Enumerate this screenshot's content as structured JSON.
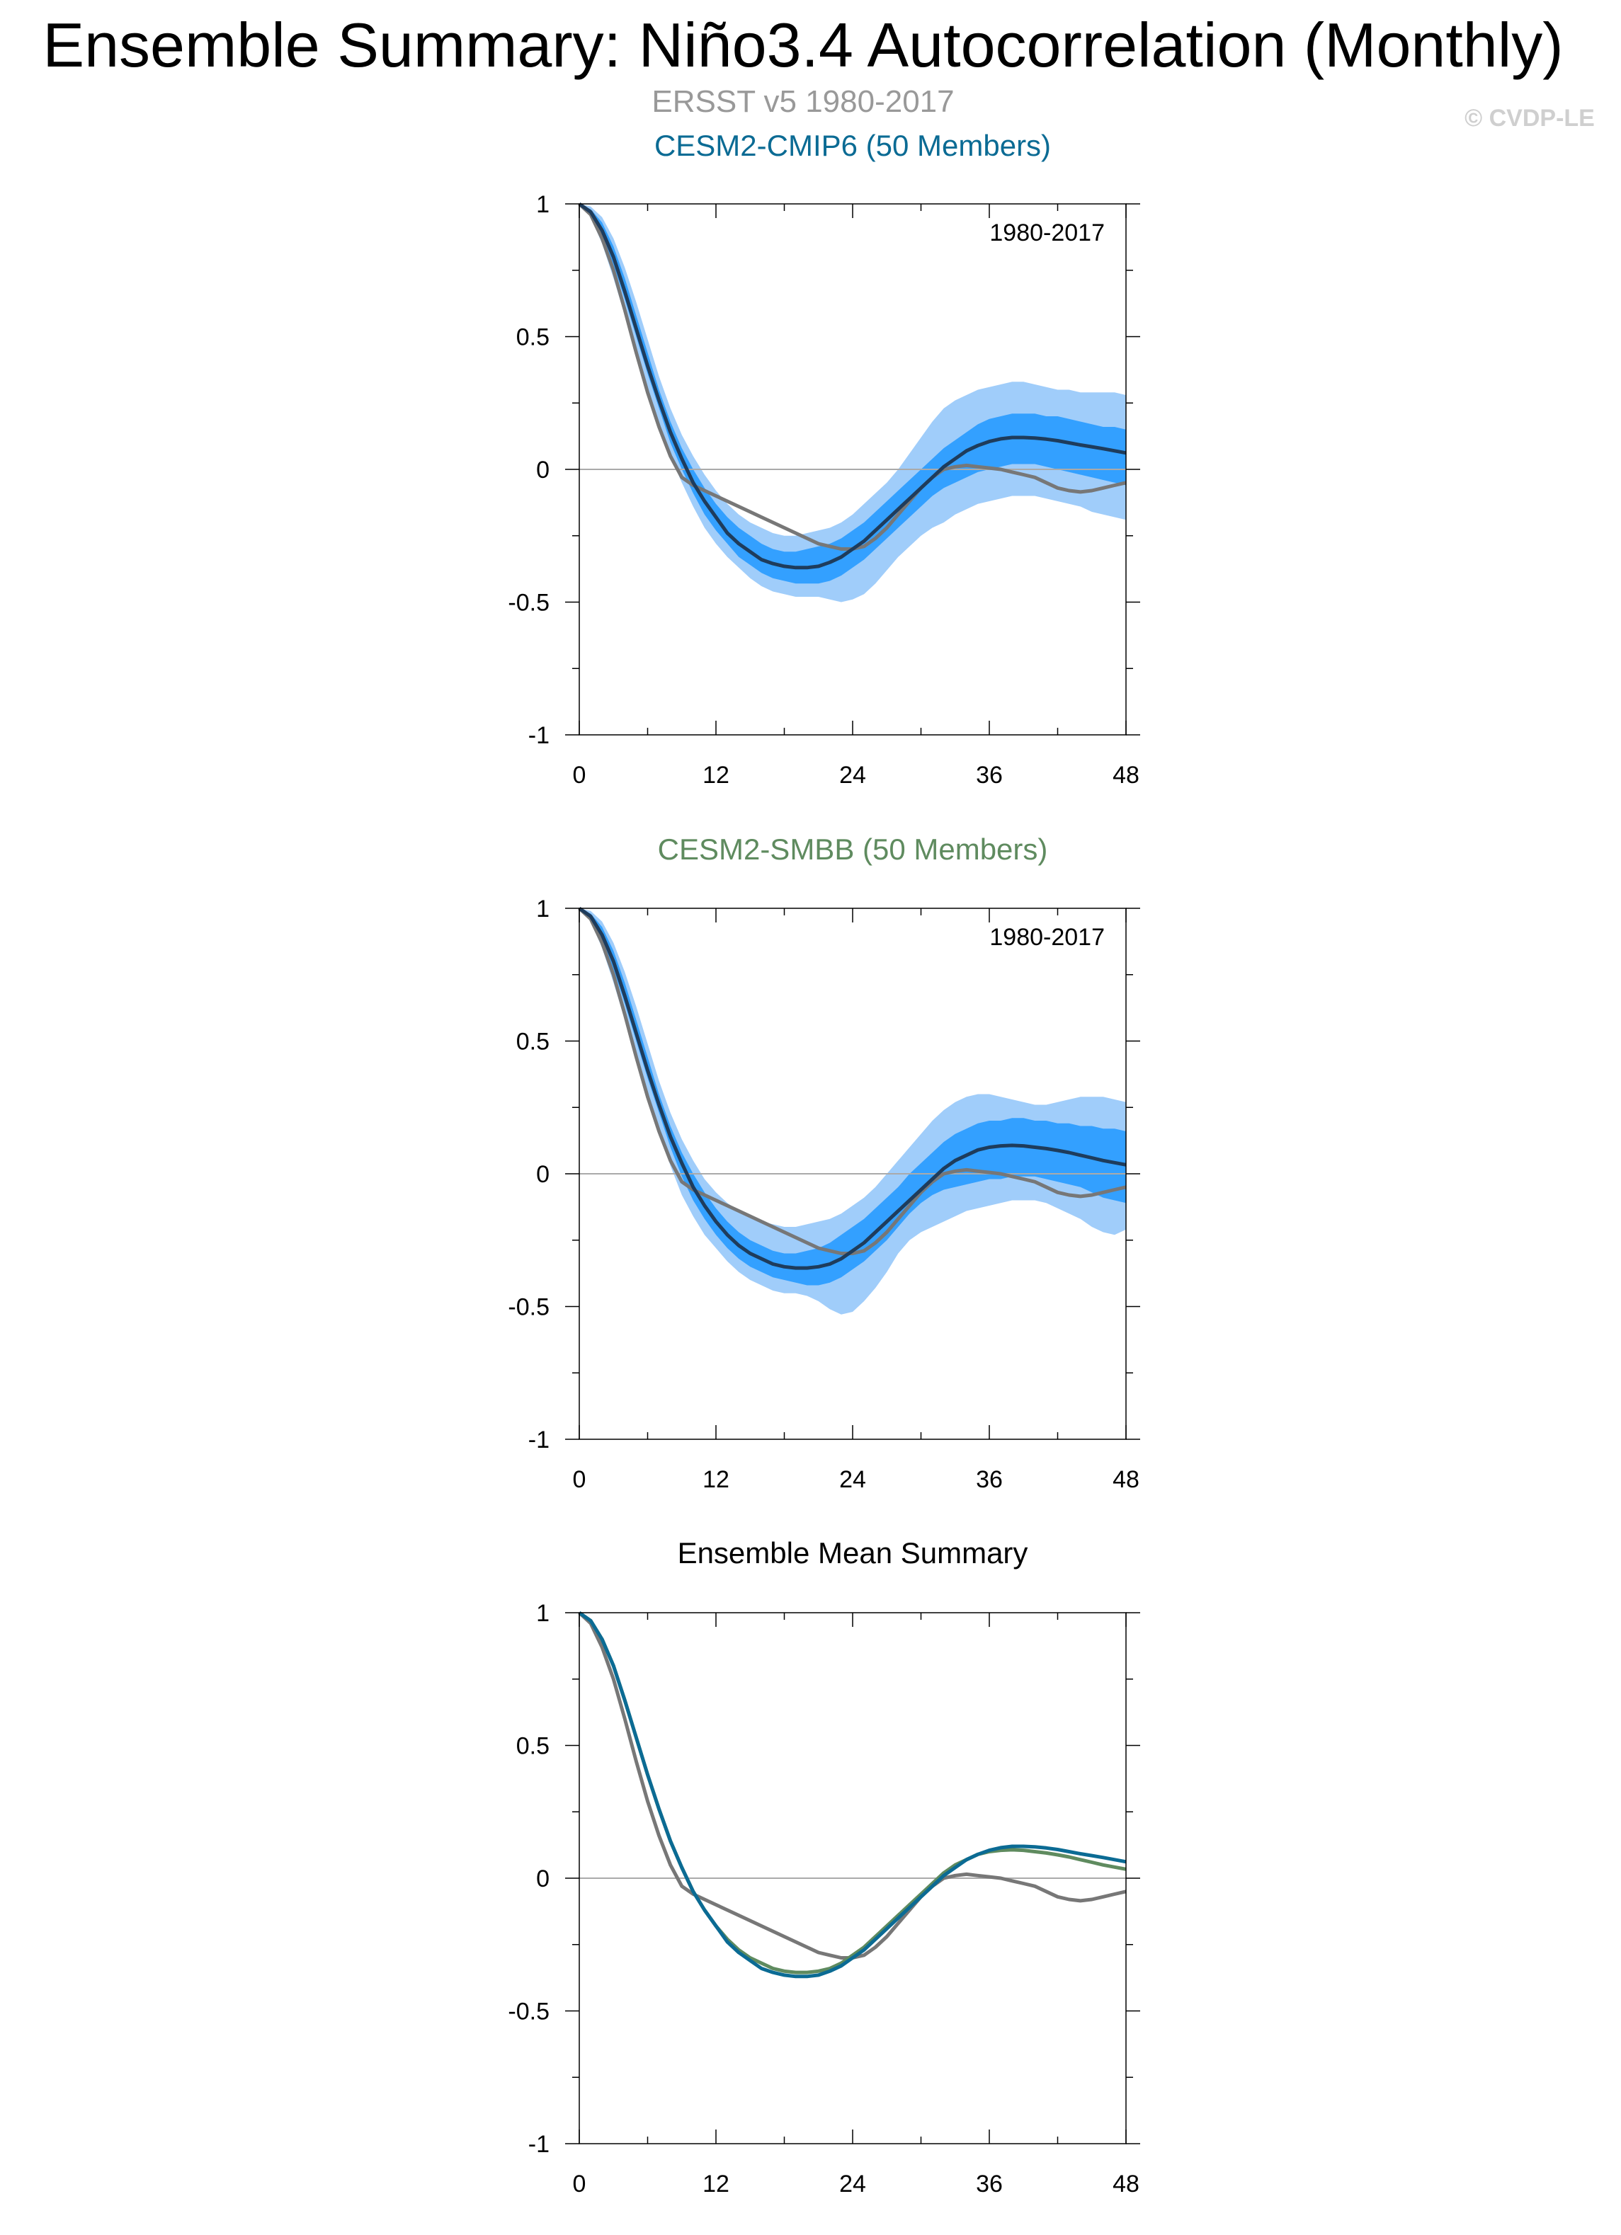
{
  "title": "Ensemble Summary: Niño3.4 Autocorrelation (Monthly)",
  "subtitle_obs": "ERSST v5 1980-2017",
  "copyright": "© CVDP-LE",
  "colors": {
    "obs": "#777777",
    "cesm2_cmip6": "#0b6b94",
    "cesm2_smbb": "#5f8b5f",
    "ens_mean": "#1e3c5c",
    "band_outer": "#a0cdfa",
    "band_inner": "#33a0ff",
    "zero_line": "#aaaaaa"
  },
  "chart_data": [
    {
      "type": "line",
      "panel_title": "CESM2-CMIP6 (50 Members)",
      "period_label": "1980-2017",
      "xlim": [
        0,
        48
      ],
      "ylim": [
        -1,
        1
      ],
      "xticks": [
        "0",
        "12",
        "24",
        "36",
        "48"
      ],
      "yticks": [
        "1",
        "0.5",
        "0",
        "-0.5",
        "-1"
      ],
      "x": [
        0,
        1,
        2,
        3,
        4,
        5,
        6,
        7,
        8,
        9,
        10,
        11,
        12,
        13,
        14,
        15,
        16,
        17,
        18,
        19,
        20,
        21,
        22,
        23,
        24,
        25,
        26,
        27,
        28,
        29,
        30,
        31,
        32,
        33,
        34,
        35,
        36,
        37,
        38,
        39,
        40,
        41,
        42,
        43,
        44,
        45,
        46,
        47,
        48
      ],
      "series": [
        {
          "name": "ensemble mean",
          "role": "mean",
          "values": [
            1.0,
            0.97,
            0.9,
            0.8,
            0.67,
            0.53,
            0.39,
            0.26,
            0.14,
            0.04,
            -0.05,
            -0.12,
            -0.18,
            -0.24,
            -0.28,
            -0.31,
            -0.34,
            -0.355,
            -0.365,
            -0.37,
            -0.37,
            -0.365,
            -0.35,
            -0.33,
            -0.3,
            -0.27,
            -0.23,
            -0.19,
            -0.15,
            -0.11,
            -0.07,
            -0.03,
            0.01,
            0.04,
            0.07,
            0.09,
            0.105,
            0.115,
            0.12,
            0.12,
            0.118,
            0.114,
            0.108,
            0.1,
            0.092,
            0.085,
            0.078,
            0.07,
            0.062
          ]
        },
        {
          "name": "ERSST v5 1980-2017",
          "role": "obs",
          "values": [
            1.0,
            0.96,
            0.87,
            0.75,
            0.6,
            0.44,
            0.29,
            0.16,
            0.05,
            -0.03,
            -0.06,
            -0.08,
            -0.1,
            -0.12,
            -0.14,
            -0.16,
            -0.18,
            -0.2,
            -0.22,
            -0.24,
            -0.26,
            -0.28,
            -0.29,
            -0.3,
            -0.3,
            -0.29,
            -0.26,
            -0.22,
            -0.17,
            -0.12,
            -0.07,
            -0.03,
            0.0,
            0.01,
            0.015,
            0.01,
            0.005,
            0.0,
            -0.01,
            -0.02,
            -0.03,
            -0.05,
            -0.07,
            -0.08,
            -0.085,
            -0.08,
            -0.07,
            -0.06,
            -0.05
          ]
        },
        {
          "name": "outer band low",
          "role": "band_outer_low",
          "values": [
            1.0,
            0.95,
            0.85,
            0.72,
            0.58,
            0.44,
            0.3,
            0.17,
            0.05,
            -0.05,
            -0.14,
            -0.22,
            -0.28,
            -0.33,
            -0.37,
            -0.41,
            -0.44,
            -0.46,
            -0.47,
            -0.48,
            -0.48,
            -0.48,
            -0.49,
            -0.5,
            -0.49,
            -0.47,
            -0.43,
            -0.38,
            -0.33,
            -0.29,
            -0.25,
            -0.22,
            -0.2,
            -0.17,
            -0.15,
            -0.13,
            -0.12,
            -0.11,
            -0.1,
            -0.1,
            -0.1,
            -0.11,
            -0.12,
            -0.13,
            -0.14,
            -0.16,
            -0.17,
            -0.18,
            -0.19
          ]
        },
        {
          "name": "inner band low",
          "role": "band_inner_low",
          "values": [
            1.0,
            0.96,
            0.88,
            0.77,
            0.64,
            0.5,
            0.36,
            0.23,
            0.1,
            0.0,
            -0.09,
            -0.17,
            -0.23,
            -0.28,
            -0.33,
            -0.36,
            -0.39,
            -0.41,
            -0.42,
            -0.43,
            -0.43,
            -0.43,
            -0.42,
            -0.4,
            -0.37,
            -0.34,
            -0.3,
            -0.26,
            -0.22,
            -0.18,
            -0.14,
            -0.1,
            -0.07,
            -0.05,
            -0.03,
            -0.01,
            0.0,
            0.01,
            0.02,
            0.02,
            0.02,
            0.01,
            0.0,
            -0.01,
            -0.02,
            -0.03,
            -0.04,
            -0.05,
            -0.06
          ]
        },
        {
          "name": "inner band high",
          "role": "band_inner_high",
          "values": [
            1.0,
            0.98,
            0.93,
            0.84,
            0.72,
            0.58,
            0.44,
            0.3,
            0.18,
            0.08,
            0.0,
            -0.07,
            -0.13,
            -0.18,
            -0.22,
            -0.25,
            -0.28,
            -0.3,
            -0.31,
            -0.31,
            -0.3,
            -0.29,
            -0.28,
            -0.26,
            -0.23,
            -0.2,
            -0.16,
            -0.12,
            -0.08,
            -0.04,
            0.0,
            0.04,
            0.08,
            0.11,
            0.14,
            0.17,
            0.19,
            0.2,
            0.21,
            0.21,
            0.21,
            0.2,
            0.2,
            0.19,
            0.18,
            0.17,
            0.16,
            0.16,
            0.15
          ]
        },
        {
          "name": "outer band high",
          "role": "band_outer_high",
          "values": [
            1.0,
            0.99,
            0.95,
            0.87,
            0.76,
            0.63,
            0.49,
            0.35,
            0.23,
            0.13,
            0.05,
            -0.02,
            -0.08,
            -0.13,
            -0.17,
            -0.2,
            -0.22,
            -0.24,
            -0.25,
            -0.25,
            -0.24,
            -0.23,
            -0.22,
            -0.2,
            -0.17,
            -0.13,
            -0.09,
            -0.05,
            0.0,
            0.06,
            0.12,
            0.18,
            0.23,
            0.26,
            0.28,
            0.3,
            0.31,
            0.32,
            0.33,
            0.33,
            0.32,
            0.31,
            0.3,
            0.3,
            0.29,
            0.29,
            0.29,
            0.29,
            0.28
          ]
        }
      ]
    },
    {
      "type": "line",
      "panel_title": "CESM2-SMBB (50 Members)",
      "period_label": "1980-2017",
      "xlim": [
        0,
        48
      ],
      "ylim": [
        -1,
        1
      ],
      "xticks": [
        "0",
        "12",
        "24",
        "36",
        "48"
      ],
      "yticks": [
        "1",
        "0.5",
        "0",
        "-0.5",
        "-1"
      ],
      "x": [
        0,
        1,
        2,
        3,
        4,
        5,
        6,
        7,
        8,
        9,
        10,
        11,
        12,
        13,
        14,
        15,
        16,
        17,
        18,
        19,
        20,
        21,
        22,
        23,
        24,
        25,
        26,
        27,
        28,
        29,
        30,
        31,
        32,
        33,
        34,
        35,
        36,
        37,
        38,
        39,
        40,
        41,
        42,
        43,
        44,
        45,
        46,
        47,
        48
      ],
      "series": [
        {
          "name": "ensemble mean",
          "role": "mean",
          "values": [
            1.0,
            0.97,
            0.9,
            0.8,
            0.67,
            0.53,
            0.39,
            0.26,
            0.14,
            0.04,
            -0.05,
            -0.12,
            -0.18,
            -0.23,
            -0.27,
            -0.3,
            -0.32,
            -0.34,
            -0.35,
            -0.355,
            -0.355,
            -0.35,
            -0.34,
            -0.32,
            -0.29,
            -0.26,
            -0.22,
            -0.18,
            -0.14,
            -0.1,
            -0.06,
            -0.02,
            0.02,
            0.05,
            0.07,
            0.09,
            0.1,
            0.105,
            0.107,
            0.105,
            0.1,
            0.095,
            0.088,
            0.08,
            0.07,
            0.06,
            0.05,
            0.042,
            0.034
          ]
        },
        {
          "name": "ERSST v5 1980-2017",
          "role": "obs",
          "values": [
            1.0,
            0.96,
            0.87,
            0.75,
            0.6,
            0.44,
            0.29,
            0.16,
            0.05,
            -0.03,
            -0.06,
            -0.08,
            -0.1,
            -0.12,
            -0.14,
            -0.16,
            -0.18,
            -0.2,
            -0.22,
            -0.24,
            -0.26,
            -0.28,
            -0.29,
            -0.3,
            -0.3,
            -0.29,
            -0.26,
            -0.22,
            -0.17,
            -0.12,
            -0.07,
            -0.03,
            0.0,
            0.01,
            0.015,
            0.01,
            0.005,
            0.0,
            -0.01,
            -0.02,
            -0.03,
            -0.05,
            -0.07,
            -0.08,
            -0.085,
            -0.08,
            -0.07,
            -0.06,
            -0.05
          ]
        },
        {
          "name": "outer band low",
          "role": "band_outer_low",
          "values": [
            1.0,
            0.95,
            0.85,
            0.72,
            0.58,
            0.44,
            0.3,
            0.16,
            0.03,
            -0.08,
            -0.16,
            -0.23,
            -0.28,
            -0.33,
            -0.37,
            -0.4,
            -0.42,
            -0.44,
            -0.45,
            -0.45,
            -0.46,
            -0.48,
            -0.51,
            -0.53,
            -0.52,
            -0.48,
            -0.43,
            -0.37,
            -0.3,
            -0.25,
            -0.22,
            -0.2,
            -0.18,
            -0.16,
            -0.14,
            -0.13,
            -0.12,
            -0.11,
            -0.1,
            -0.1,
            -0.1,
            -0.11,
            -0.13,
            -0.15,
            -0.17,
            -0.2,
            -0.22,
            -0.23,
            -0.21
          ]
        },
        {
          "name": "inner band low",
          "role": "band_inner_low",
          "values": [
            1.0,
            0.96,
            0.88,
            0.77,
            0.64,
            0.5,
            0.36,
            0.23,
            0.1,
            -0.01,
            -0.1,
            -0.17,
            -0.23,
            -0.28,
            -0.32,
            -0.35,
            -0.37,
            -0.39,
            -0.4,
            -0.41,
            -0.42,
            -0.42,
            -0.41,
            -0.39,
            -0.36,
            -0.33,
            -0.29,
            -0.25,
            -0.2,
            -0.15,
            -0.11,
            -0.08,
            -0.06,
            -0.05,
            -0.04,
            -0.03,
            -0.02,
            -0.02,
            -0.01,
            -0.01,
            -0.01,
            -0.02,
            -0.03,
            -0.04,
            -0.05,
            -0.07,
            -0.09,
            -0.1,
            -0.11
          ]
        },
        {
          "name": "inner band high",
          "role": "band_inner_high",
          "values": [
            1.0,
            0.98,
            0.93,
            0.84,
            0.72,
            0.58,
            0.44,
            0.3,
            0.18,
            0.08,
            0.0,
            -0.07,
            -0.13,
            -0.18,
            -0.22,
            -0.25,
            -0.27,
            -0.29,
            -0.3,
            -0.3,
            -0.29,
            -0.28,
            -0.26,
            -0.23,
            -0.2,
            -0.17,
            -0.13,
            -0.09,
            -0.05,
            0.0,
            0.04,
            0.08,
            0.12,
            0.15,
            0.17,
            0.19,
            0.2,
            0.2,
            0.21,
            0.21,
            0.2,
            0.2,
            0.19,
            0.19,
            0.18,
            0.18,
            0.17,
            0.17,
            0.16
          ]
        },
        {
          "name": "outer band high",
          "role": "band_outer_high",
          "values": [
            1.0,
            0.99,
            0.95,
            0.87,
            0.76,
            0.63,
            0.49,
            0.35,
            0.23,
            0.13,
            0.05,
            -0.02,
            -0.07,
            -0.11,
            -0.14,
            -0.16,
            -0.18,
            -0.19,
            -0.2,
            -0.2,
            -0.19,
            -0.18,
            -0.17,
            -0.15,
            -0.12,
            -0.09,
            -0.05,
            0.0,
            0.05,
            0.1,
            0.15,
            0.2,
            0.24,
            0.27,
            0.29,
            0.3,
            0.3,
            0.29,
            0.28,
            0.27,
            0.26,
            0.26,
            0.27,
            0.28,
            0.29,
            0.29,
            0.29,
            0.28,
            0.27
          ]
        }
      ]
    },
    {
      "type": "line",
      "panel_title": "Ensemble Mean Summary",
      "period_label": "",
      "xlim": [
        0,
        48
      ],
      "ylim": [
        -1,
        1
      ],
      "xticks": [
        "0",
        "12",
        "24",
        "36",
        "48"
      ],
      "yticks": [
        "1",
        "0.5",
        "0",
        "-0.5",
        "-1"
      ],
      "x": [
        0,
        1,
        2,
        3,
        4,
        5,
        6,
        7,
        8,
        9,
        10,
        11,
        12,
        13,
        14,
        15,
        16,
        17,
        18,
        19,
        20,
        21,
        22,
        23,
        24,
        25,
        26,
        27,
        28,
        29,
        30,
        31,
        32,
        33,
        34,
        35,
        36,
        37,
        38,
        39,
        40,
        41,
        42,
        43,
        44,
        45,
        46,
        47,
        48
      ],
      "series": [
        {
          "name": "CESM2-CMIP6",
          "role": "cmip6",
          "values": [
            1.0,
            0.97,
            0.9,
            0.8,
            0.67,
            0.53,
            0.39,
            0.26,
            0.14,
            0.04,
            -0.05,
            -0.12,
            -0.18,
            -0.24,
            -0.28,
            -0.31,
            -0.34,
            -0.355,
            -0.365,
            -0.37,
            -0.37,
            -0.365,
            -0.35,
            -0.33,
            -0.3,
            -0.27,
            -0.23,
            -0.19,
            -0.15,
            -0.11,
            -0.07,
            -0.03,
            0.01,
            0.04,
            0.07,
            0.09,
            0.105,
            0.115,
            0.12,
            0.12,
            0.118,
            0.114,
            0.108,
            0.1,
            0.092,
            0.085,
            0.078,
            0.07,
            0.062
          ]
        },
        {
          "name": "CESM2-SMBB",
          "role": "smbb",
          "values": [
            1.0,
            0.97,
            0.9,
            0.8,
            0.67,
            0.53,
            0.39,
            0.26,
            0.14,
            0.04,
            -0.05,
            -0.12,
            -0.18,
            -0.23,
            -0.27,
            -0.3,
            -0.32,
            -0.34,
            -0.35,
            -0.355,
            -0.355,
            -0.35,
            -0.34,
            -0.32,
            -0.29,
            -0.26,
            -0.22,
            -0.18,
            -0.14,
            -0.1,
            -0.06,
            -0.02,
            0.02,
            0.05,
            0.07,
            0.09,
            0.1,
            0.105,
            0.107,
            0.105,
            0.1,
            0.095,
            0.088,
            0.08,
            0.07,
            0.06,
            0.05,
            0.042,
            0.034
          ]
        },
        {
          "name": "ERSST v5 1980-2017",
          "role": "obs",
          "values": [
            1.0,
            0.96,
            0.87,
            0.75,
            0.6,
            0.44,
            0.29,
            0.16,
            0.05,
            -0.03,
            -0.06,
            -0.08,
            -0.1,
            -0.12,
            -0.14,
            -0.16,
            -0.18,
            -0.2,
            -0.22,
            -0.24,
            -0.26,
            -0.28,
            -0.29,
            -0.3,
            -0.3,
            -0.29,
            -0.26,
            -0.22,
            -0.17,
            -0.12,
            -0.07,
            -0.03,
            0.0,
            0.01,
            0.015,
            0.01,
            0.005,
            0.0,
            -0.01,
            -0.02,
            -0.03,
            -0.05,
            -0.07,
            -0.08,
            -0.085,
            -0.08,
            -0.07,
            -0.06,
            -0.05
          ]
        }
      ]
    }
  ]
}
